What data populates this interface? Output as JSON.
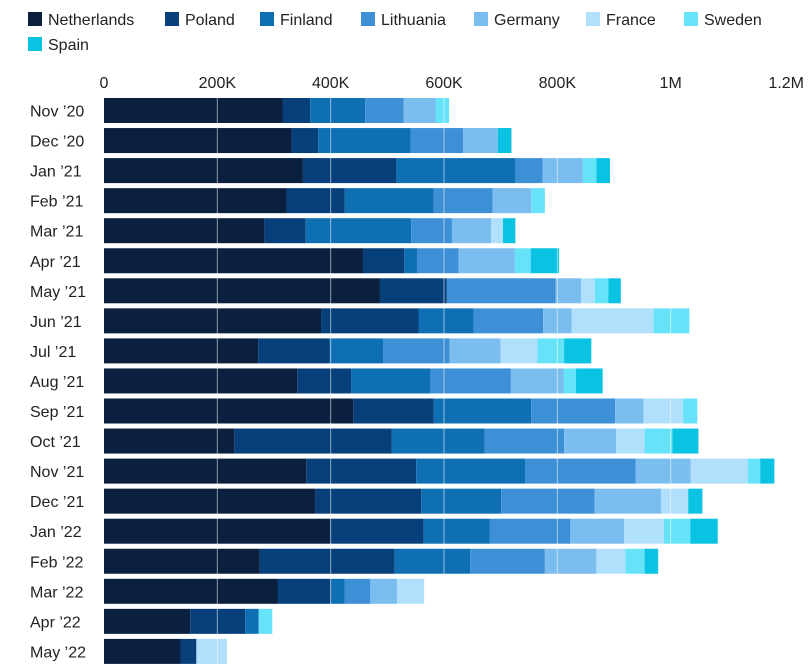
{
  "chart_data": {
    "type": "bar",
    "orientation": "horizontal",
    "stacked": true,
    "title": "",
    "xlabel": "",
    "ylabel": "",
    "xlim": [
      0,
      1200000
    ],
    "x_ticks": [
      0,
      200000,
      400000,
      600000,
      800000,
      1000000,
      1200000
    ],
    "x_tick_labels": [
      "0",
      "200K",
      "400K",
      "600K",
      "800K",
      "1M",
      "1.2M"
    ],
    "x_axis_position": "top",
    "grid": true,
    "legend_position": "top-left",
    "categories": [
      "Nov ’20",
      "Dec ’20",
      "Jan ’21",
      "Feb ’21",
      "Mar ’21",
      "Apr ’21",
      "May ’21",
      "Jun ’21",
      "Jul ’21",
      "Aug ’21",
      "Sep ’21",
      "Oct ’21",
      "Nov ’21",
      "Dec ’21",
      "Jan ’22",
      "Feb ’22",
      "Mar ’22",
      "Apr ’22",
      "May ’22"
    ],
    "series": [
      {
        "name": "Netherlands",
        "color": "#0b1f3f",
        "values": [
          315000,
          331000,
          351000,
          322000,
          283000,
          457000,
          487000,
          383000,
          272000,
          341000,
          440000,
          230000,
          357000,
          373000,
          399000,
          275000,
          307000,
          152000,
          135000
        ]
      },
      {
        "name": "Poland",
        "color": "#073f7a",
        "values": [
          49000,
          47000,
          165000,
          103000,
          73000,
          73000,
          118000,
          172000,
          126000,
          95000,
          142000,
          278000,
          194000,
          187000,
          165000,
          238000,
          93000,
          97000,
          28000
        ]
      },
      {
        "name": "Finland",
        "color": "#0f6fb3",
        "values": [
          97000,
          163000,
          210000,
          157000,
          186000,
          23000,
          0,
          97000,
          95000,
          140000,
          172000,
          164000,
          192000,
          141000,
          117000,
          133000,
          25000,
          24000,
          0
        ]
      },
      {
        "name": "Lithuania",
        "color": "#3d90d6",
        "values": [
          68000,
          93000,
          48000,
          104000,
          72000,
          73000,
          192000,
          123000,
          117000,
          142000,
          148000,
          140000,
          195000,
          165000,
          142000,
          132000,
          45000,
          0,
          0
        ]
      },
      {
        "name": "Germany",
        "color": "#7cbdf0",
        "values": [
          56000,
          61000,
          71000,
          68000,
          69000,
          99000,
          45000,
          50000,
          90000,
          93000,
          50000,
          92000,
          97000,
          117000,
          95000,
          91000,
          47000,
          0,
          0
        ]
      },
      {
        "name": "France",
        "color": "#b0e0fb",
        "values": [
          0,
          0,
          0,
          0,
          21000,
          0,
          24000,
          145000,
          65000,
          0,
          70000,
          50000,
          101000,
          48000,
          70000,
          51000,
          48000,
          0,
          54000
        ]
      },
      {
        "name": "Sweden",
        "color": "#66e3f8",
        "values": [
          24000,
          0,
          24000,
          24000,
          0,
          28000,
          24000,
          63000,
          47000,
          22000,
          25000,
          49000,
          22000,
          0,
          47000,
          34000,
          0,
          24000,
          0
        ]
      },
      {
        "name": "Spain",
        "color": "#0ac2e2",
        "values": [
          0,
          24000,
          24000,
          0,
          22000,
          50000,
          22000,
          0,
          48000,
          47000,
          0,
          46000,
          25000,
          25000,
          48000,
          24000,
          0,
          0,
          0
        ]
      }
    ]
  }
}
